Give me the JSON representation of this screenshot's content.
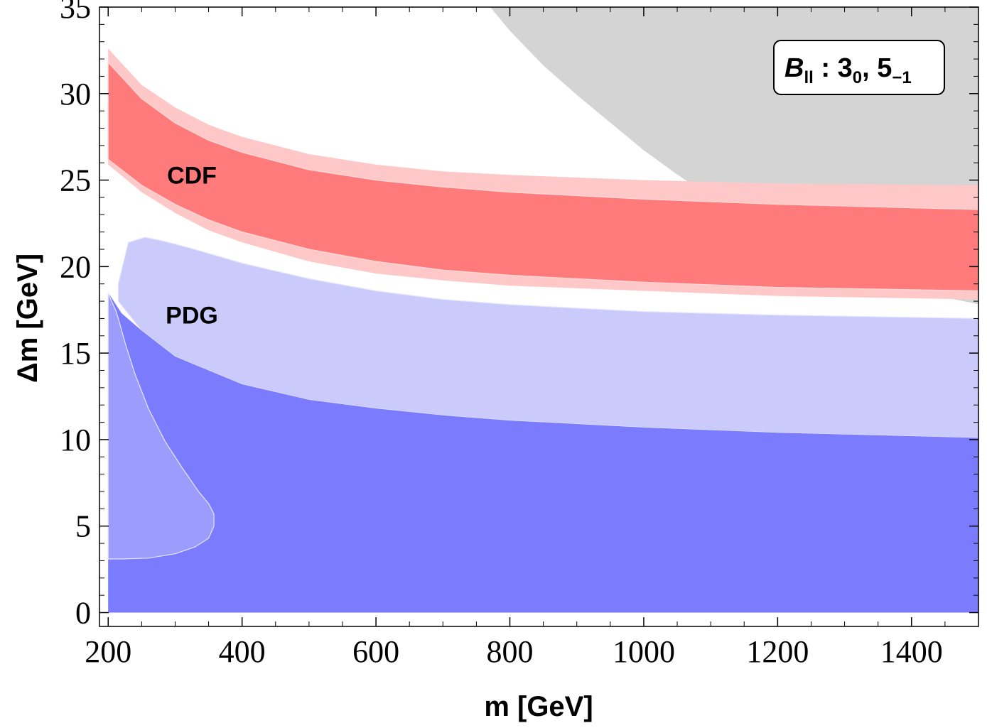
{
  "chart_data": {
    "type": "area",
    "title": "",
    "xlabel": "m [GeV]",
    "ylabel": "Δm [GeV]",
    "xlim": [
      187,
      1500
    ],
    "ylim": [
      -0.8,
      35
    ],
    "xticks": [
      200,
      400,
      600,
      800,
      1000,
      1200,
      1400
    ],
    "yticks": [
      0,
      5,
      10,
      15,
      20,
      25,
      30,
      35
    ],
    "legend": {
      "main": "B",
      "sub": "ll",
      "sep": " : ",
      "item1": "3",
      "item1_sub": "0",
      "comma": ", ",
      "item2": "5",
      "item2_sub": "−1"
    },
    "labels": [
      {
        "text": "CDF",
        "x": 325,
        "y": 24.8
      },
      {
        "text": "PDG",
        "x": 325,
        "y": 16.7
      }
    ],
    "series": [
      {
        "name": "excluded-gray",
        "color": "#c8c8c8",
        "upper": {
          "x": [
            770,
            1500
          ],
          "y": [
            35,
            35
          ]
        },
        "lower": {
          "x": [
            770,
            800,
            850,
            900,
            950,
            1000,
            1050,
            1100,
            1150,
            1200,
            1250,
            1300,
            1350,
            1400,
            1450,
            1500
          ],
          "y": [
            35,
            33.6,
            31.6,
            29.9,
            28.3,
            26.7,
            25.3,
            24.0,
            22.8,
            21.7,
            20.8,
            20.0,
            19.4,
            18.8,
            18.2,
            17.8
          ]
        }
      },
      {
        "name": "CDF-outer",
        "color": "#ffc8c8",
        "upper": {
          "x": [
            200,
            250,
            300,
            350,
            400,
            500,
            600,
            700,
            800,
            1000,
            1200,
            1500
          ],
          "y": [
            32.6,
            30.5,
            29.2,
            28.2,
            27.5,
            26.5,
            25.9,
            25.5,
            25.3,
            25.0,
            24.8,
            24.7
          ]
        },
        "lower": {
          "x": [
            200,
            250,
            300,
            350,
            400,
            500,
            600,
            700,
            800,
            1000,
            1200,
            1500
          ],
          "y": [
            25.9,
            24.3,
            23.1,
            22.1,
            21.4,
            20.3,
            19.6,
            19.2,
            18.9,
            18.6,
            18.3,
            18.1
          ]
        }
      },
      {
        "name": "CDF-inner",
        "color": "#ff7a7a",
        "upper": {
          "x": [
            200,
            250,
            300,
            350,
            400,
            500,
            600,
            700,
            800,
            1000,
            1200,
            1500
          ],
          "y": [
            31.8,
            29.7,
            28.3,
            27.3,
            26.6,
            25.6,
            25.0,
            24.6,
            24.3,
            23.9,
            23.6,
            23.3
          ]
        },
        "lower": {
          "x": [
            200,
            250,
            300,
            350,
            400,
            500,
            600,
            700,
            800,
            1000,
            1200,
            1500
          ],
          "y": [
            26.2,
            24.7,
            23.6,
            22.7,
            22.0,
            21.0,
            20.3,
            19.8,
            19.5,
            19.1,
            18.8,
            18.6
          ]
        }
      },
      {
        "name": "PDG-light",
        "color": "#cbcbfb",
        "upper": {
          "x": [
            215,
            230,
            255,
            280,
            320,
            400,
            500,
            600,
            700,
            800,
            1000,
            1200,
            1500
          ],
          "y": [
            19.0,
            21.4,
            21.7,
            21.5,
            21.1,
            20.2,
            19.3,
            18.6,
            18.1,
            17.8,
            17.4,
            17.2,
            17.0
          ]
        },
        "lower": {
          "x": [
            215,
            250,
            300,
            400,
            500,
            600,
            700,
            800,
            1000,
            1200,
            1500
          ],
          "y": [
            18.0,
            16.3,
            14.8,
            13.2,
            12.3,
            11.8,
            11.4,
            11.1,
            10.7,
            10.4,
            10.1
          ]
        }
      },
      {
        "name": "PDG-dark",
        "color": "#7b7bfd",
        "upper": {
          "x": [
            200,
            220,
            250,
            300,
            400,
            500,
            600,
            700,
            800,
            1000,
            1200,
            1500
          ],
          "y": [
            18.5,
            17.3,
            16.3,
            14.8,
            13.2,
            12.3,
            11.8,
            11.4,
            11.1,
            10.7,
            10.4,
            10.1
          ]
        },
        "lower": {
          "x": [
            200,
            1500
          ],
          "y": [
            0,
            0
          ]
        }
      },
      {
        "name": "lobe",
        "color": "#9c9cfc",
        "boundary": {
          "x": [
            200,
            205,
            212,
            218,
            226,
            240,
            260,
            285,
            310,
            335,
            350,
            358,
            358,
            350,
            330,
            300,
            260,
            220,
            200
          ],
          "y": [
            18.5,
            18.0,
            17.4,
            16.6,
            15.5,
            13.8,
            11.8,
            9.9,
            8.4,
            7.0,
            6.3,
            5.7,
            5.0,
            4.3,
            3.8,
            3.4,
            3.15,
            3.1,
            3.1
          ]
        }
      }
    ]
  }
}
